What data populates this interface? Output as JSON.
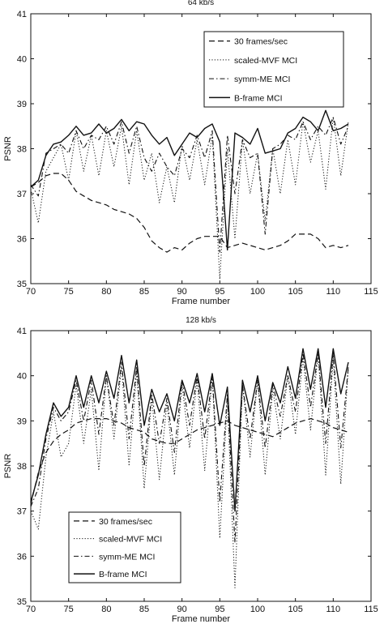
{
  "chart_data": [
    {
      "type": "line",
      "title": "64 kb/s",
      "xlabel": "Frame number",
      "ylabel": "PSNR",
      "xlim": [
        70,
        115
      ],
      "ylim": [
        35,
        41
      ],
      "xticks": [
        "70",
        "75",
        "80",
        "85",
        "90",
        "95",
        "100",
        "105",
        "110",
        "115"
      ],
      "yticks": [
        "35",
        "36",
        "37",
        "38",
        "39",
        "40",
        "41"
      ],
      "grid": false,
      "legend_position": "top-right",
      "x": [
        70,
        71,
        72,
        73,
        74,
        75,
        76,
        77,
        78,
        79,
        80,
        81,
        82,
        83,
        84,
        85,
        86,
        87,
        88,
        89,
        90,
        91,
        92,
        93,
        94,
        95,
        96,
        97,
        98,
        99,
        100,
        101,
        102,
        103,
        104,
        105,
        106,
        107,
        108,
        109,
        110,
        111,
        112
      ],
      "series": [
        {
          "name": "30 frames/sec",
          "style": "dashed",
          "values": [
            37.15,
            37.25,
            37.4,
            37.45,
            37.45,
            37.3,
            37.05,
            36.95,
            36.85,
            36.8,
            36.75,
            36.65,
            36.6,
            36.55,
            36.45,
            36.25,
            35.95,
            35.8,
            35.7,
            35.8,
            35.75,
            35.9,
            36.0,
            36.05,
            36.05,
            36.05,
            35.8,
            35.85,
            35.9,
            35.85,
            35.8,
            35.75,
            35.8,
            35.85,
            35.95,
            36.1,
            36.1,
            36.1,
            36.0,
            35.8,
            35.85,
            35.8,
            35.85
          ]
        },
        {
          "name": "scaled-MVF MCI",
          "style": "dotted",
          "values": [
            37.1,
            36.35,
            37.5,
            37.8,
            38.1,
            37.3,
            38.4,
            37.5,
            38.3,
            37.4,
            38.4,
            37.6,
            38.5,
            37.2,
            38.4,
            37.3,
            37.9,
            36.8,
            37.6,
            36.8,
            38.1,
            37.3,
            38.2,
            37.2,
            38.3,
            35.1,
            38.0,
            36.0,
            38.2,
            37.0,
            37.9,
            36.4,
            38.0,
            37.0,
            38.2,
            37.2,
            38.6,
            37.7,
            38.4,
            37.1,
            38.7,
            37.4,
            38.6
          ]
        },
        {
          "name": "symm-ME MCI",
          "style": "dashdot",
          "values": [
            37.2,
            36.95,
            37.9,
            38.0,
            38.1,
            37.9,
            38.4,
            38.0,
            38.3,
            38.2,
            38.5,
            38.1,
            38.6,
            37.9,
            38.5,
            37.8,
            37.5,
            37.9,
            37.6,
            37.4,
            38.0,
            37.8,
            38.3,
            37.8,
            38.4,
            35.7,
            38.3,
            37.0,
            38.2,
            37.8,
            37.9,
            36.1,
            38.0,
            38.1,
            38.3,
            38.2,
            38.6,
            38.2,
            38.5,
            38.3,
            38.7,
            38.1,
            38.5
          ]
        },
        {
          "name": "B-frame MCI",
          "style": "solid",
          "values": [
            37.15,
            37.3,
            37.85,
            38.1,
            38.15,
            38.3,
            38.5,
            38.3,
            38.35,
            38.55,
            38.35,
            38.45,
            38.65,
            38.4,
            38.6,
            38.55,
            38.3,
            38.1,
            38.25,
            37.85,
            38.1,
            38.35,
            38.25,
            38.45,
            38.55,
            38.15,
            35.75,
            38.35,
            38.25,
            38.1,
            38.45,
            37.9,
            37.95,
            38.0,
            38.35,
            38.45,
            38.7,
            38.6,
            38.4,
            38.85,
            38.4,
            38.45,
            38.55
          ]
        }
      ]
    },
    {
      "type": "line",
      "title": "128 kb/s",
      "xlabel": "Frame number",
      "ylabel": "PSNR",
      "xlim": [
        70,
        115
      ],
      "ylim": [
        35,
        41
      ],
      "xticks": [
        "70",
        "75",
        "80",
        "85",
        "90",
        "95",
        "100",
        "105",
        "110",
        "115"
      ],
      "yticks": [
        "35",
        "36",
        "37",
        "38",
        "39",
        "40",
        "41"
      ],
      "grid": false,
      "legend_position": "bottom-left",
      "x": [
        70,
        71,
        72,
        73,
        74,
        75,
        76,
        77,
        78,
        79,
        80,
        81,
        82,
        83,
        84,
        85,
        86,
        87,
        88,
        89,
        90,
        91,
        92,
        93,
        94,
        95,
        96,
        97,
        98,
        99,
        100,
        101,
        102,
        103,
        104,
        105,
        106,
        107,
        108,
        109,
        110,
        111,
        112
      ],
      "series": [
        {
          "name": "30 frames/sec",
          "style": "dashed",
          "values": [
            37.15,
            37.85,
            38.3,
            38.55,
            38.7,
            38.8,
            38.95,
            39.0,
            39.05,
            39.05,
            39.05,
            39.0,
            38.95,
            38.85,
            38.8,
            38.75,
            38.6,
            38.55,
            38.5,
            38.5,
            38.6,
            38.7,
            38.8,
            38.85,
            38.9,
            38.95,
            39.0,
            38.9,
            38.85,
            38.8,
            38.75,
            38.7,
            38.65,
            38.75,
            38.85,
            38.95,
            39.0,
            39.05,
            39.0,
            38.95,
            38.85,
            38.8,
            38.75
          ]
        },
        {
          "name": "scaled-MVF MCI",
          "style": "dotted",
          "values": [
            37.0,
            36.6,
            38.2,
            39.2,
            38.2,
            38.5,
            39.8,
            38.5,
            39.7,
            37.9,
            40.0,
            38.6,
            40.2,
            38.0,
            40.1,
            37.5,
            39.5,
            37.7,
            39.4,
            37.8,
            39.8,
            38.4,
            39.9,
            37.9,
            40.0,
            36.4,
            39.5,
            35.3,
            39.8,
            38.2,
            39.9,
            37.8,
            39.7,
            38.6,
            40.0,
            38.7,
            40.4,
            38.8,
            40.5,
            37.8,
            40.4,
            37.6,
            40.2
          ]
        },
        {
          "name": "symm-ME MCI",
          "style": "dashdot",
          "values": [
            37.1,
            37.5,
            38.6,
            39.3,
            39.0,
            39.2,
            39.9,
            39.0,
            39.9,
            38.7,
            40.0,
            38.9,
            40.3,
            38.6,
            40.2,
            38.0,
            39.6,
            38.5,
            39.5,
            38.3,
            39.9,
            38.9,
            40.0,
            38.6,
            40.0,
            37.2,
            39.6,
            36.3,
            39.8,
            38.6,
            39.9,
            38.4,
            39.8,
            39.1,
            40.0,
            39.2,
            40.5,
            39.3,
            40.5,
            38.5,
            40.5,
            38.4,
            40.2
          ]
        },
        {
          "name": "B-frame MCI",
          "style": "solid",
          "values": [
            37.2,
            37.8,
            38.7,
            39.4,
            39.1,
            39.3,
            40.0,
            39.3,
            40.0,
            39.4,
            40.1,
            39.5,
            40.45,
            39.4,
            40.35,
            38.9,
            39.7,
            39.2,
            39.6,
            39.0,
            39.9,
            39.4,
            40.05,
            39.2,
            40.05,
            38.9,
            39.75,
            37.0,
            39.9,
            39.2,
            40.0,
            39.0,
            39.85,
            39.4,
            40.2,
            39.5,
            40.6,
            39.7,
            40.6,
            39.3,
            40.6,
            39.6,
            40.3
          ]
        }
      ]
    }
  ]
}
